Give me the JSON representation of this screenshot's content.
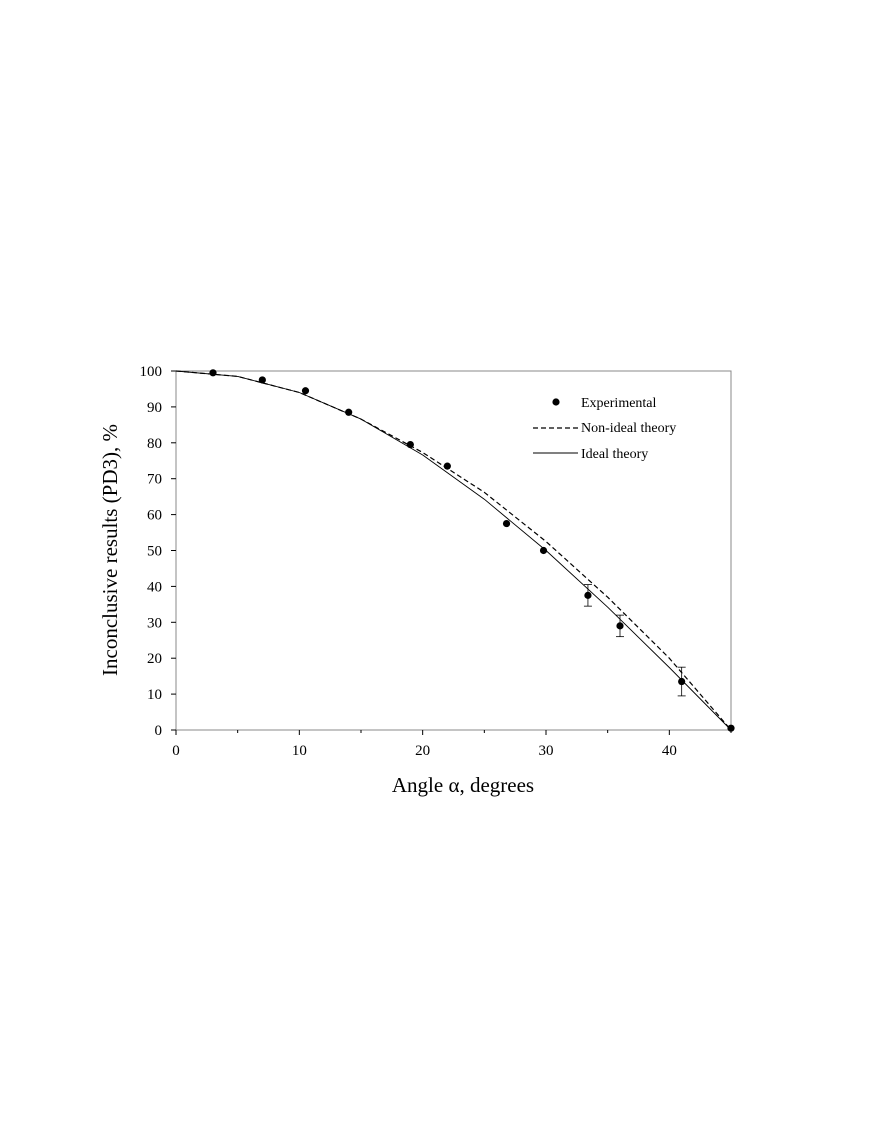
{
  "chart_data": {
    "type": "scatter",
    "title": "",
    "xlabel": "Angle α, degrees",
    "ylabel": "Inconclusive results (PD3), %",
    "xlim": [
      0,
      45
    ],
    "ylim": [
      0,
      100
    ],
    "x_ticks": [
      "0",
      "10",
      "20",
      "30",
      "40"
    ],
    "y_ticks": [
      "0",
      "10",
      "20",
      "30",
      "40",
      "50",
      "60",
      "70",
      "80",
      "90",
      "100"
    ],
    "grid": false,
    "legend_position": "top-right",
    "series": [
      {
        "name": "Experimental",
        "style": "markers",
        "x": [
          3,
          7,
          10.5,
          14,
          19,
          22,
          26.8,
          29.8,
          33.4,
          36,
          41,
          45
        ],
        "y": [
          99.5,
          97.5,
          94.5,
          88.5,
          79.5,
          73.5,
          57.5,
          50,
          37.5,
          29,
          13.5,
          0.5
        ],
        "error": [
          0,
          0,
          0,
          0,
          0,
          0,
          0,
          0,
          3,
          3,
          4,
          0
        ]
      },
      {
        "name": "Non-ideal theory",
        "style": "dashed",
        "x": [
          0,
          5,
          10,
          15,
          20,
          25,
          30,
          35,
          40,
          45
        ],
        "y": [
          100,
          98.5,
          94,
          86.6,
          77.3,
          66.2,
          52.5,
          37,
          20,
          0
        ]
      },
      {
        "name": "Ideal theory",
        "style": "solid",
        "x": [
          0,
          5,
          10,
          15,
          20,
          25,
          30,
          35,
          40,
          45
        ],
        "y": [
          100,
          98.5,
          94,
          86.6,
          76.6,
          64.3,
          50,
          34.2,
          17.4,
          0
        ]
      }
    ]
  }
}
